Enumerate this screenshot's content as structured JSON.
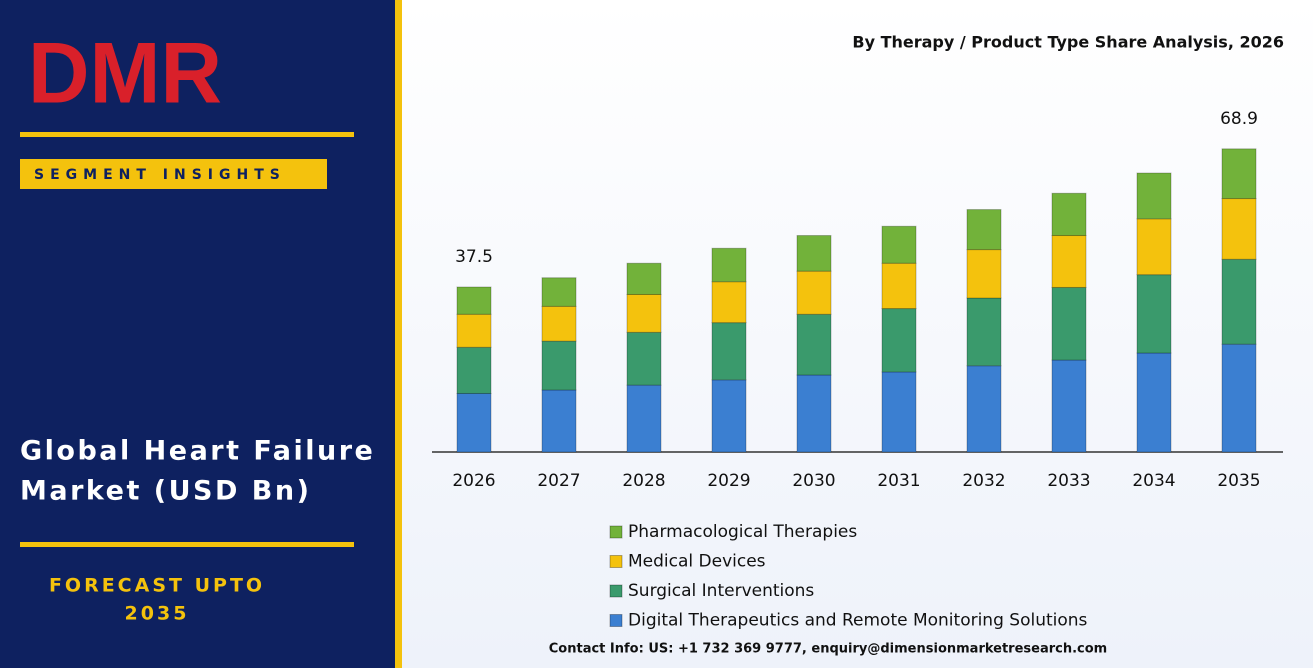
{
  "panel": {
    "logo": "DMR",
    "badge": "SEGMENT INSIGHTS",
    "headline": [
      "Global Heart Failure",
      "Market (USD Bn)"
    ],
    "forecast": [
      "FORECAST UPTO",
      "2035"
    ]
  },
  "chart_data": {
    "type": "stacked_bar",
    "title": "By Therapy / Product Type Share Analysis, 2026",
    "categories": [
      "2026",
      "2027",
      "2028",
      "2029",
      "2030",
      "2031",
      "2032",
      "2033",
      "2034",
      "2035"
    ],
    "series": [
      {
        "name": "Digital Therapeutics and Remote Monitoring Solutions",
        "color": "#3b7fd1",
        "values": [
          13.3,
          14.1,
          15.2,
          16.4,
          17.5,
          18.2,
          19.6,
          20.9,
          22.5,
          24.5
        ]
      },
      {
        "name": "Surgical Interventions",
        "color": "#3a9a6c",
        "values": [
          10.5,
          11.1,
          12.0,
          13.0,
          13.8,
          14.4,
          15.4,
          16.5,
          17.8,
          19.3
        ]
      },
      {
        "name": "Medical Devices",
        "color": "#f4c20d",
        "values": [
          7.5,
          7.9,
          8.6,
          9.3,
          9.8,
          10.3,
          11.0,
          11.8,
          12.7,
          13.8
        ]
      },
      {
        "name": "Pharmacological Therapies",
        "color": "#72b23a",
        "values": [
          6.2,
          6.5,
          7.1,
          7.6,
          8.1,
          8.4,
          9.1,
          9.6,
          10.4,
          11.3
        ]
      }
    ],
    "totals": [
      37.5,
      null,
      null,
      null,
      null,
      null,
      null,
      null,
      null,
      68.9
    ],
    "ylim": [
      0,
      80
    ]
  },
  "footer": "Contact Info: US: +1 732 369 9777, enquiry@dimensionmarketresearch.com"
}
